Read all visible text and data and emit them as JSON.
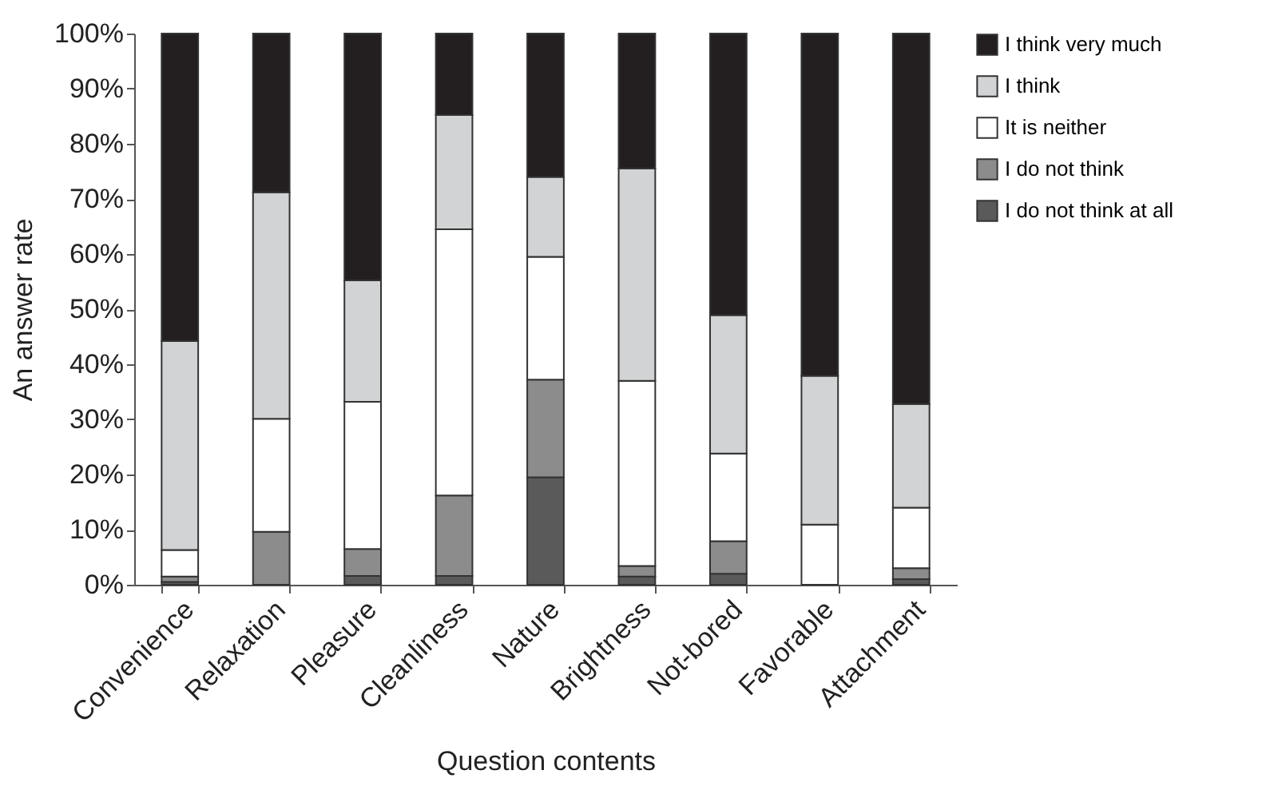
{
  "chart_data": {
    "type": "bar",
    "stacked": true,
    "xlabel": "Question contents",
    "ylabel": "An answer rate",
    "categories": [
      "Convenience",
      "Relaxation",
      "Pleasure",
      "Cleanliness",
      "Nature",
      "Brightness",
      "Not-bored",
      "Favorable",
      "Attachment"
    ],
    "series": [
      {
        "name": "I do not think at all",
        "color": "#5a5a5a",
        "values": [
          0.5,
          0,
          1.6,
          1.6,
          19.5,
          1.5,
          2.0,
          0,
          1.0
        ]
      },
      {
        "name": "I do not think",
        "color": "#8c8c8c",
        "values": [
          1.0,
          9.6,
          4.9,
          14.6,
          17.7,
          1.9,
          5.9,
          0,
          2.0
        ]
      },
      {
        "name": "It is neither",
        "color": "#ffffff",
        "values": [
          4.8,
          20.5,
          26.7,
          48.3,
          22.3,
          33.6,
          15.9,
          10.9,
          11.0
        ]
      },
      {
        "name": "I think",
        "color": "#d1d3d4",
        "values": [
          37.9,
          41.1,
          22.0,
          20.7,
          14.5,
          38.5,
          25.1,
          27.0,
          18.8
        ]
      },
      {
        "name": "I think very much",
        "color": "#231f20",
        "values": [
          55.8,
          28.8,
          44.8,
          14.8,
          26.0,
          24.5,
          51.1,
          62.1,
          67.2
        ]
      }
    ],
    "ylim": [
      0,
      100
    ],
    "yticks": [
      {
        "value": 0,
        "label": "0%"
      },
      {
        "value": 10,
        "label": "10%"
      },
      {
        "value": 20,
        "label": "20%"
      },
      {
        "value": 30,
        "label": "30%"
      },
      {
        "value": 40,
        "label": "40%"
      },
      {
        "value": 50,
        "label": "50%"
      },
      {
        "value": 60,
        "label": "60%"
      },
      {
        "value": 70,
        "label": "70%"
      },
      {
        "value": 80,
        "label": "80%"
      },
      {
        "value": 90,
        "label": "90%"
      },
      {
        "value": 100,
        "label": "100%"
      }
    ],
    "grid": false,
    "legend": "right"
  }
}
